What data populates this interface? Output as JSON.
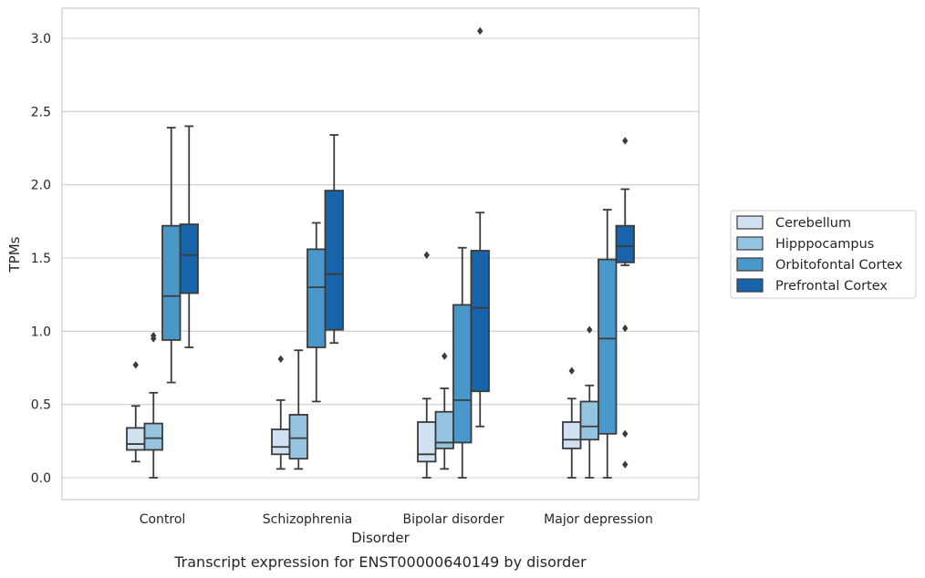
{
  "chart_data": {
    "type": "box",
    "caption": "Transcript expression for ENST00000640149 by disorder",
    "xlabel": "Disorder",
    "ylabel": "TPMs",
    "ylim": [
      -0.14,
      3.2
    ],
    "yticks": [
      "0.0",
      "0.5",
      "1.0",
      "1.5",
      "2.0",
      "2.5",
      "3.0"
    ],
    "grid": true,
    "legend_position": "right",
    "categories": [
      "Control",
      "Schizophrenia",
      "Bipolar disorder",
      "Major depression"
    ],
    "series": [
      {
        "name": "Cerebellum",
        "color": "#d0e1f2",
        "boxes": [
          {
            "whislo": 0.11,
            "q1": 0.19,
            "med": 0.23,
            "q3": 0.34,
            "whishi": 0.49,
            "fliers": [
              0.77
            ]
          },
          {
            "whislo": 0.06,
            "q1": 0.16,
            "med": 0.21,
            "q3": 0.33,
            "whishi": 0.53,
            "fliers": [
              0.81
            ]
          },
          {
            "whislo": 0.0,
            "q1": 0.11,
            "med": 0.16,
            "q3": 0.38,
            "whishi": 0.54,
            "fliers": [
              1.52
            ]
          },
          {
            "whislo": 0.0,
            "q1": 0.2,
            "med": 0.26,
            "q3": 0.38,
            "whishi": 0.54,
            "fliers": [
              0.73
            ]
          }
        ]
      },
      {
        "name": "Hipppocampus",
        "color": "#94c4df",
        "boxes": [
          {
            "whislo": 0.0,
            "q1": 0.19,
            "med": 0.27,
            "q3": 0.37,
            "whishi": 0.58,
            "fliers": [
              0.95,
              0.97
            ]
          },
          {
            "whislo": 0.06,
            "q1": 0.13,
            "med": 0.27,
            "q3": 0.43,
            "whishi": 0.87,
            "fliers": []
          },
          {
            "whislo": 0.06,
            "q1": 0.2,
            "med": 0.24,
            "q3": 0.45,
            "whishi": 0.61,
            "fliers": [
              0.83
            ]
          },
          {
            "whislo": 0.0,
            "q1": 0.26,
            "med": 0.35,
            "q3": 0.52,
            "whishi": 0.63,
            "fliers": [
              1.01
            ]
          }
        ]
      },
      {
        "name": "Orbitofontal Cortex",
        "color": "#4a98c9",
        "boxes": [
          {
            "whislo": 0.65,
            "q1": 0.94,
            "med": 1.24,
            "q3": 1.72,
            "whishi": 2.39,
            "fliers": []
          },
          {
            "whislo": 0.52,
            "q1": 0.89,
            "med": 1.3,
            "q3": 1.56,
            "whishi": 1.74,
            "fliers": []
          },
          {
            "whislo": 0.0,
            "q1": 0.24,
            "med": 0.53,
            "q3": 1.18,
            "whishi": 1.57,
            "fliers": []
          },
          {
            "whislo": 0.0,
            "q1": 0.3,
            "med": 0.95,
            "q3": 1.49,
            "whishi": 1.83,
            "fliers": []
          }
        ]
      },
      {
        "name": "Prefrontal Cortex",
        "color": "#1764ab",
        "boxes": [
          {
            "whislo": 0.89,
            "q1": 1.26,
            "med": 1.52,
            "q3": 1.73,
            "whishi": 2.4,
            "fliers": []
          },
          {
            "whislo": 0.92,
            "q1": 1.01,
            "med": 1.39,
            "q3": 1.96,
            "whishi": 2.34,
            "fliers": []
          },
          {
            "whislo": 0.35,
            "q1": 0.59,
            "med": 1.16,
            "q3": 1.55,
            "whishi": 1.81,
            "fliers": [
              3.05
            ]
          },
          {
            "whislo": 1.45,
            "q1": 1.47,
            "med": 1.58,
            "q3": 1.72,
            "whishi": 1.97,
            "fliers": [
              2.3,
              1.02,
              0.3,
              0.09
            ]
          }
        ]
      }
    ]
  }
}
